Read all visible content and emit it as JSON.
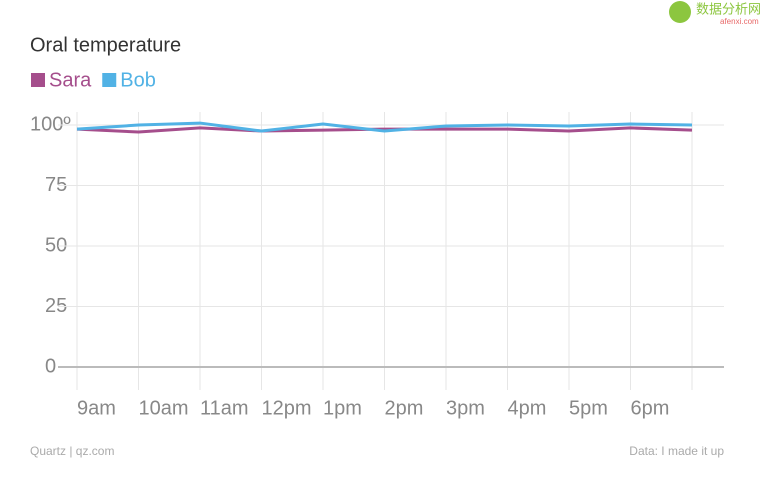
{
  "chart_data": {
    "type": "line",
    "title": "Oral temperature",
    "categories": [
      "9am",
      "10am",
      "11am",
      "12pm",
      "1pm",
      "2pm",
      "3pm",
      "4pm",
      "5pm",
      "6pm",
      null
    ],
    "series": [
      {
        "name": "Sara",
        "color": "#a54e8c",
        "values": [
          98.3,
          97.1,
          98.8,
          97.5,
          97.9,
          98.3,
          98.3,
          98.3,
          97.5,
          98.8,
          97.9
        ]
      },
      {
        "name": "Bob",
        "color": "#51b2e5",
        "values": [
          98.3,
          100,
          100.8,
          97.5,
          100.4,
          97.5,
          99.6,
          100,
          99.6,
          100.4,
          100
        ]
      }
    ],
    "ylim": [
      0,
      100
    ],
    "yticks": [
      0,
      25,
      50,
      75,
      {
        "value": 100,
        "label": "100º"
      }
    ],
    "grid": true,
    "source": "Quartz | qz.com",
    "note": "Data: I made it up"
  },
  "watermark": {
    "name": "数据分析网",
    "url": "afenxi.com"
  }
}
